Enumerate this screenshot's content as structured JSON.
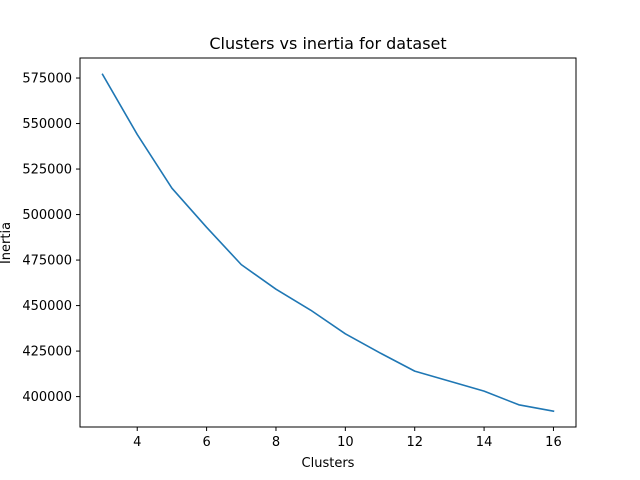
{
  "chart_data": {
    "type": "line",
    "title": "Clusters vs inertia for dataset",
    "xlabel": "Clusters",
    "ylabel": "Inertia",
    "xlim": [
      2.35,
      16.65
    ],
    "ylim": [
      383300,
      586000
    ],
    "xticks": [
      4,
      6,
      8,
      10,
      12,
      14,
      16
    ],
    "yticks": [
      400000,
      425000,
      450000,
      475000,
      500000,
      525000,
      550000,
      575000
    ],
    "grid": false,
    "series": [
      {
        "color": "#1f77b4",
        "x": [
          3,
          4,
          5,
          6,
          7,
          8,
          9,
          10,
          11,
          12,
          13,
          14,
          15,
          16
        ],
        "y": [
          577000,
          544000,
          514500,
          493000,
          472500,
          459000,
          447500,
          434500,
          424000,
          414000,
          408500,
          403000,
          395500,
          392000
        ]
      }
    ]
  }
}
